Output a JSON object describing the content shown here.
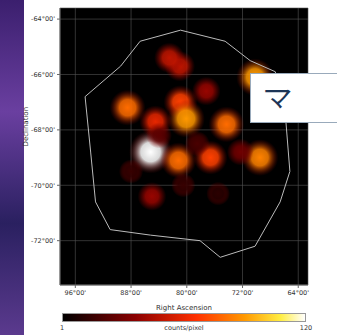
{
  "chart_data": {
    "type": "heatmap",
    "xlabel": "Right Ascension",
    "ylabel": "Declination",
    "xlim": [
      98.2,
      62.6
    ],
    "ylim": [
      -73.6,
      -63.6
    ],
    "xticks": [
      {
        "value": 96,
        "label": "96°00'"
      },
      {
        "value": 88,
        "label": "88°00'"
      },
      {
        "value": 80,
        "label": "80°00'"
      },
      {
        "value": 72,
        "label": "72°00'"
      },
      {
        "value": 64,
        "label": "64°00'"
      }
    ],
    "yticks": [
      {
        "value": -64,
        "label": "-64°00'"
      },
      {
        "value": -66,
        "label": "-66°00'"
      },
      {
        "value": -68,
        "label": "-68°00'"
      },
      {
        "value": -70,
        "label": "-70°00'"
      },
      {
        "value": -72,
        "label": "-72°00'"
      }
    ],
    "grid": true,
    "sources": {
      "x": [
        85.2,
        88.5,
        80.9,
        80.1,
        84.5,
        81.2,
        76.6,
        74.3,
        70.2,
        69.5,
        81.0,
        82.5,
        85.0,
        77.2,
        72.3,
        84.0,
        78.5,
        88.0,
        80.5,
        75.5
      ],
      "y": [
        -68.8,
        -67.2,
        -67.0,
        -67.6,
        -67.7,
        -69.1,
        -69.0,
        -67.8,
        -66.1,
        -69.0,
        -65.7,
        -65.4,
        -70.4,
        -66.6,
        -68.8,
        -68.2,
        -68.5,
        -69.5,
        -70.0,
        -70.3
      ],
      "values": [
        120,
        80,
        70,
        90,
        60,
        80,
        70,
        80,
        90,
        85,
        50,
        50,
        40,
        40,
        30,
        25,
        20,
        15,
        15,
        12
      ]
    },
    "contour": {
      "x": [
        94.6,
        89.5,
        86.7,
        80.9,
        74.5,
        70.9,
        67.3,
        65.9,
        65.2,
        66.6,
        70.2,
        75.2,
        78.1,
        85.2,
        91.0,
        93.1,
        93.8,
        94.6
      ],
      "y": [
        -66.8,
        -65.7,
        -64.8,
        -64.4,
        -64.8,
        -65.5,
        -65.9,
        -67.3,
        -69.5,
        -70.6,
        -72.2,
        -72.6,
        -72.0,
        -71.8,
        -71.6,
        -70.6,
        -68.8,
        -66.8
      ]
    },
    "colorbar": {
      "label": "counts/pixel",
      "range": [
        1,
        120
      ],
      "ticks": [
        1,
        120
      ]
    },
    "annotation": "マ"
  }
}
